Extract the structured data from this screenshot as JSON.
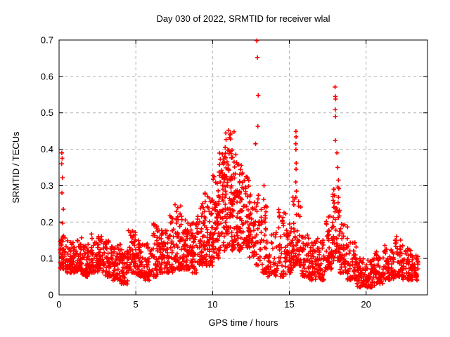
{
  "chart_data": {
    "type": "scatter",
    "title": "Day 030 of 2022, SRMTID for receiver wlal",
    "xlabel": "GPS time / hours",
    "ylabel": "SRMTID / TECUs",
    "xlim": [
      0,
      24
    ],
    "ylim": [
      0,
      0.7
    ],
    "xticks": [
      0,
      5,
      10,
      15,
      20
    ],
    "xtick_labels": [
      "0",
      "5",
      "10",
      "15",
      "20"
    ],
    "yticks": [
      0,
      0.1,
      0.2,
      0.3,
      0.4,
      0.5,
      0.6,
      0.7
    ],
    "ytick_labels": [
      "0",
      "0.1",
      "0.2",
      "0.3",
      "0.4",
      "0.5",
      "0.6",
      "0.7"
    ],
    "grid": "dashed",
    "legend": "none",
    "marker": "plus",
    "marker_color": "#ff0000",
    "grid_color": "#b0b0b0",
    "border_color": "#000000",
    "background_color": "#ffffff",
    "series_name": "SRMTID",
    "band_segments": [
      [
        0.05,
        0.5,
        40,
        0.07,
        0.16,
        1.5
      ],
      [
        0.5,
        1,
        50,
        0.06,
        0.15,
        1.5
      ],
      [
        1,
        1.5,
        50,
        0.06,
        0.16,
        1.5
      ],
      [
        1.5,
        2,
        50,
        0.05,
        0.14,
        1.5
      ],
      [
        2,
        2.5,
        50,
        0.06,
        0.17,
        1.5
      ],
      [
        2.5,
        3,
        50,
        0.06,
        0.18,
        1.5
      ],
      [
        3,
        3.5,
        50,
        0.05,
        0.15,
        1.5
      ],
      [
        3.5,
        4,
        50,
        0.04,
        0.14,
        1.5
      ],
      [
        4,
        4.5,
        50,
        0.03,
        0.13,
        1.5
      ],
      [
        4.5,
        5,
        50,
        0.06,
        0.18,
        1.5
      ],
      [
        5,
        5.5,
        45,
        0.05,
        0.15,
        1.5
      ],
      [
        5.5,
        6,
        45,
        0.04,
        0.14,
        1.5
      ],
      [
        6,
        6.5,
        50,
        0.05,
        0.2,
        1.7
      ],
      [
        6.5,
        7,
        50,
        0.06,
        0.18,
        1.5
      ],
      [
        7,
        7.5,
        50,
        0.06,
        0.22,
        1.7
      ],
      [
        7.5,
        8,
        55,
        0.07,
        0.25,
        1.8
      ],
      [
        8,
        8.5,
        55,
        0.07,
        0.21,
        1.6
      ],
      [
        8.5,
        9,
        55,
        0.06,
        0.2,
        1.5
      ],
      [
        9,
        9.5,
        55,
        0.08,
        0.26,
        1.6
      ],
      [
        9.5,
        10,
        60,
        0.08,
        0.28,
        1.5
      ],
      [
        10,
        10.4,
        55,
        0.1,
        0.33,
        1.4
      ],
      [
        10.4,
        10.8,
        60,
        0.12,
        0.4,
        1.3
      ],
      [
        10.8,
        11.2,
        65,
        0.13,
        0.45,
        1.3
      ],
      [
        11.2,
        11.6,
        60,
        0.12,
        0.4,
        1.3
      ],
      [
        11.6,
        12,
        55,
        0.12,
        0.36,
        1.4
      ],
      [
        12,
        12.4,
        50,
        0.13,
        0.33,
        1.4
      ],
      [
        12.4,
        12.8,
        40,
        0.1,
        0.3,
        1.4
      ],
      [
        12.8,
        13.2,
        30,
        0.08,
        0.28,
        1.4
      ],
      [
        13.2,
        13.6,
        35,
        0.06,
        0.26,
        1.6
      ],
      [
        13.6,
        14.2,
        40,
        0.05,
        0.18,
        1.5
      ],
      [
        14.2,
        14.8,
        45,
        0.05,
        0.25,
        1.8
      ],
      [
        14.8,
        15.2,
        40,
        0.06,
        0.2,
        1.5
      ],
      [
        15.2,
        15.8,
        60,
        0.08,
        0.27,
        1.4
      ],
      [
        15.8,
        16.3,
        45,
        0.05,
        0.17,
        1.5
      ],
      [
        16.3,
        16.8,
        45,
        0.04,
        0.15,
        1.5
      ],
      [
        16.8,
        17.4,
        50,
        0.04,
        0.16,
        1.5
      ],
      [
        17.4,
        17.8,
        45,
        0.07,
        0.22,
        1.5
      ],
      [
        17.8,
        18.3,
        60,
        0.09,
        0.3,
        1.4
      ],
      [
        18.3,
        18.8,
        50,
        0.06,
        0.2,
        1.5
      ],
      [
        18.8,
        19.4,
        50,
        0.04,
        0.15,
        1.5
      ],
      [
        19.4,
        20,
        50,
        0.02,
        0.1,
        1.4
      ],
      [
        20,
        20.6,
        50,
        0.02,
        0.1,
        1.4
      ],
      [
        20.6,
        21.2,
        50,
        0.03,
        0.12,
        1.4
      ],
      [
        21.2,
        21.8,
        50,
        0.04,
        0.14,
        1.5
      ],
      [
        21.8,
        22.4,
        50,
        0.05,
        0.16,
        1.6
      ],
      [
        22.4,
        23,
        50,
        0.04,
        0.13,
        1.5
      ],
      [
        23,
        23.4,
        35,
        0.04,
        0.11,
        1.4
      ]
    ],
    "outliers": [
      [
        0.18,
        0.39
      ],
      [
        0.2,
        0.375
      ],
      [
        0.17,
        0.36
      ],
      [
        0.22,
        0.322
      ],
      [
        0.19,
        0.28
      ],
      [
        0.28,
        0.235
      ],
      [
        0.24,
        0.197
      ],
      [
        0.3,
        0.162
      ],
      [
        11.05,
        0.452
      ],
      [
        11.15,
        0.44
      ],
      [
        11.1,
        0.432
      ],
      [
        11.4,
        0.448
      ],
      [
        12.8,
        0.415
      ],
      [
        12.88,
        0.698
      ],
      [
        12.92,
        0.652
      ],
      [
        12.97,
        0.548
      ],
      [
        12.95,
        0.463
      ],
      [
        13.35,
        0.3
      ],
      [
        13.33,
        0.262
      ],
      [
        13.37,
        0.24
      ],
      [
        15.43,
        0.449
      ],
      [
        15.44,
        0.434
      ],
      [
        15.42,
        0.415
      ],
      [
        15.43,
        0.399
      ],
      [
        15.45,
        0.362
      ],
      [
        15.44,
        0.345
      ],
      [
        15.42,
        0.31
      ],
      [
        15.46,
        0.285
      ],
      [
        17.98,
        0.571
      ],
      [
        18.0,
        0.545
      ],
      [
        18.02,
        0.538
      ],
      [
        17.99,
        0.509
      ],
      [
        18.01,
        0.49
      ],
      [
        18.0,
        0.424
      ],
      [
        18.1,
        0.39
      ],
      [
        18.15,
        0.35
      ],
      [
        18.2,
        0.315
      ]
    ]
  }
}
